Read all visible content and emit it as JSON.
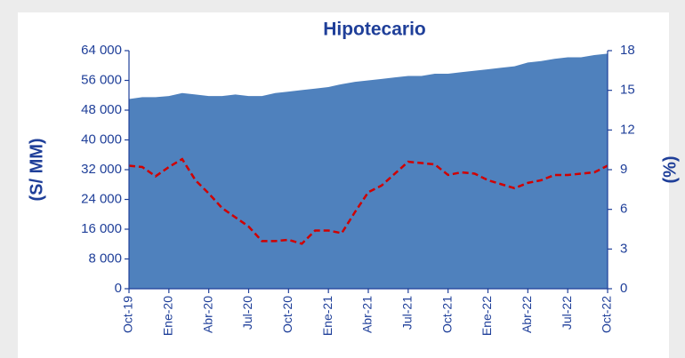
{
  "chart_data": {
    "type": "area-line",
    "title": "Hipotecario",
    "ylabel": "(S/ MM)",
    "y2label": "(%)",
    "categories": [
      "Oct-19",
      null,
      null,
      "Ene-20",
      null,
      null,
      "Abr-20",
      null,
      null,
      "Jul-20",
      null,
      null,
      "Oct-20",
      null,
      null,
      "Ene-21",
      null,
      null,
      "Abr-21",
      null,
      null,
      "Jul-21",
      null,
      null,
      "Oct-21",
      null,
      null,
      "Ene-22",
      null,
      null,
      "Abr-22",
      null,
      null,
      "Jul-22",
      null,
      null,
      "Oct-22"
    ],
    "series": [
      {
        "type": "area",
        "color": "#4f81bd",
        "values": [
          51000,
          51500,
          51500,
          51800,
          52600,
          52200,
          51800,
          51800,
          52200,
          51800,
          51800,
          52600,
          53000,
          53400,
          53800,
          54200,
          55000,
          55600,
          56000,
          56400,
          56800,
          57200,
          57200,
          57800,
          57800,
          58200,
          58600,
          59000,
          59400,
          59800,
          60800,
          61200,
          61800,
          62200,
          62200,
          62800,
          63200
        ]
      },
      {
        "type": "line",
        "axis": "y2",
        "color": "#d00000",
        "dashed": true,
        "values": [
          9.3,
          9.2,
          8.5,
          9.2,
          9.8,
          8.2,
          7.2,
          6.1,
          5.4,
          4.7,
          3.6,
          3.6,
          3.7,
          3.4,
          4.4,
          4.4,
          4.2,
          5.8,
          7.3,
          7.8,
          8.7,
          9.6,
          9.5,
          9.4,
          8.6,
          8.8,
          8.7,
          8.2,
          7.9,
          7.6,
          8.0,
          8.2,
          8.6,
          8.6,
          8.7,
          8.8,
          9.3
        ]
      }
    ],
    "ylim": [
      0,
      64000
    ],
    "yticks": [
      {
        "value": 0,
        "label": "0"
      },
      {
        "value": 8000,
        "label": "8 000"
      },
      {
        "value": 16000,
        "label": "16 000"
      },
      {
        "value": 24000,
        "label": "24 000"
      },
      {
        "value": 32000,
        "label": "32 000"
      },
      {
        "value": 40000,
        "label": "40 000"
      },
      {
        "value": 48000,
        "label": "48 000"
      },
      {
        "value": 56000,
        "label": "56 000"
      },
      {
        "value": 64000,
        "label": "64 000"
      }
    ],
    "y2lim": [
      0,
      18
    ],
    "y2ticks": [
      0,
      3,
      6,
      9,
      12,
      15,
      18
    ]
  }
}
